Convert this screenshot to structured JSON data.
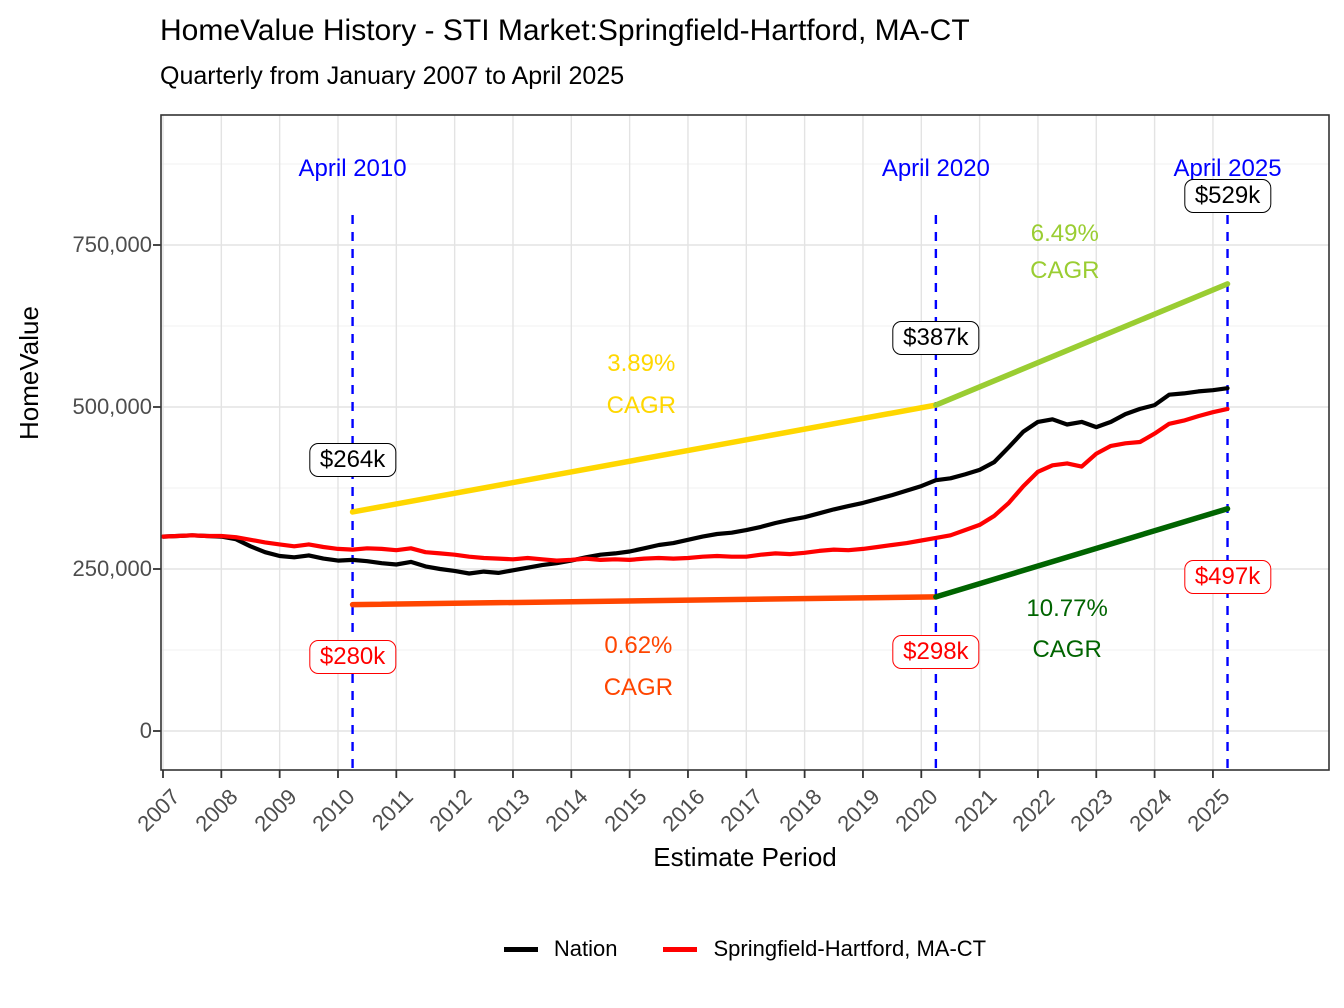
{
  "title": "HomeValue History - STI Market:Springfield-Hartford, MA-CT",
  "subtitle": "Quarterly from January 2007 to April 2025",
  "axes": {
    "y_label": "HomeValue",
    "x_label": "Estimate Period",
    "y_tick_labels": [
      "0",
      "250,000",
      "500,000",
      "750,000"
    ],
    "y_tick_values_thousands": [
      0,
      250,
      500,
      750
    ],
    "x_tick_labels": [
      "2007",
      "2008",
      "2009",
      "2010",
      "2011",
      "2012",
      "2013",
      "2014",
      "2015",
      "2016",
      "2017",
      "2018",
      "2019",
      "2020",
      "2021",
      "2022",
      "2023",
      "2024",
      "2025"
    ]
  },
  "legend": [
    {
      "label": "Nation",
      "color": "#000000"
    },
    {
      "label": "Springfield-Hartford, MA-CT",
      "color": "#ff0000"
    }
  ],
  "colors": {
    "blue_marker": "#0000ff",
    "gold_trend": "#ffd700",
    "yellowgreen_trend": "#9acd32",
    "orangered_trend": "#ff4500",
    "darkgreen_trend": "#006400",
    "grid_major": "#e3e3e3",
    "grid_minor": "#f1f1f1",
    "tick_text": "#4d4d4d",
    "panel_border": "#333333"
  },
  "chart_data": {
    "type": "line",
    "title": "HomeValue History - STI Market:Springfield-Hartford, MA-CT",
    "subtitle": "Quarterly from January 2007 to April 2025",
    "xlabel": "Estimate Period",
    "ylabel": "HomeValue",
    "x_unit": "decimal year, quarterly steps",
    "y_unit": "USD (values stored in thousands)",
    "x_range": [
      2007.0,
      2025.25
    ],
    "ylim_thousands": [
      0,
      900
    ],
    "grid": "major and minor horizontal, major vertical per year",
    "legend_position": "bottom",
    "series": [
      {
        "name": "Nation",
        "color": "#000000",
        "x_start": 2007.0,
        "x_step": 0.25,
        "values_thousands": [
          300,
          301,
          302,
          301,
          300,
          296,
          285,
          276,
          270,
          268,
          271,
          266,
          263,
          264,
          262,
          259,
          257,
          261,
          254,
          250,
          247,
          243,
          246,
          244,
          248,
          252,
          256,
          259,
          263,
          268,
          272,
          274,
          277,
          282,
          287,
          290,
          295,
          300,
          304,
          306,
          310,
          315,
          321,
          326,
          330,
          336,
          342,
          347,
          352,
          358,
          364,
          371,
          378,
          387,
          390,
          396,
          403,
          415,
          438,
          462,
          477,
          481,
          473,
          477,
          469,
          477,
          489,
          497,
          503,
          519,
          521,
          524,
          526,
          529
        ]
      },
      {
        "name": "Springfield-Hartford, MA-CT",
        "color": "#ff0000",
        "x_start": 2007.0,
        "x_step": 0.25,
        "values_thousands": [
          300,
          301,
          302,
          301,
          301,
          299,
          295,
          291,
          288,
          285,
          288,
          284,
          281,
          280,
          282,
          281,
          279,
          282,
          276,
          274,
          272,
          269,
          267,
          266,
          265,
          267,
          265,
          263,
          264,
          266,
          264,
          265,
          264,
          266,
          267,
          266,
          267,
          269,
          270,
          269,
          269,
          272,
          274,
          273,
          275,
          278,
          280,
          279,
          281,
          284,
          287,
          290,
          294,
          298,
          302,
          310,
          318,
          332,
          352,
          378,
          400,
          410,
          413,
          408,
          428,
          440,
          444,
          446,
          459,
          474,
          479,
          486,
          492,
          497
        ]
      }
    ],
    "trend_lines": [
      {
        "name": "nation-cagr-2010-2020",
        "label": "3.89% CAGR",
        "color": "#ffd700",
        "x": [
          2010.25,
          2020.25
        ],
        "values_thousands": [
          338,
          503
        ]
      },
      {
        "name": "nation-cagr-2020-2025",
        "label": "6.49% CAGR",
        "color": "#9acd32",
        "x": [
          2020.25,
          2025.25
        ],
        "values_thousands": [
          503,
          690
        ]
      },
      {
        "name": "market-cagr-2010-2020",
        "label": "0.62% CAGR",
        "color": "#ff4500",
        "x": [
          2010.25,
          2020.25
        ],
        "values_thousands": [
          195,
          207
        ]
      },
      {
        "name": "market-cagr-2020-2025",
        "label": "10.77% CAGR",
        "color": "#006400",
        "x": [
          2020.25,
          2025.25
        ],
        "values_thousands": [
          207,
          343
        ]
      }
    ],
    "vlines": [
      {
        "x": 2010.25,
        "label": "April 2010",
        "color": "#0000ff",
        "style": "dashed"
      },
      {
        "x": 2020.25,
        "label": "April 2020",
        "color": "#0000ff",
        "style": "dashed"
      },
      {
        "x": 2025.25,
        "label": "April 2025",
        "color": "#0000ff",
        "style": "dashed"
      }
    ],
    "value_callouts": [
      {
        "series": "Nation",
        "date": "April 2010",
        "text": "$264k"
      },
      {
        "series": "Nation",
        "date": "April 2020",
        "text": "$387k"
      },
      {
        "series": "Nation",
        "date": "April 2025",
        "text": "$529k"
      },
      {
        "series": "Springfield-Hartford, MA-CT",
        "date": "April 2010",
        "text": "$280k"
      },
      {
        "series": "Springfield-Hartford, MA-CT",
        "date": "April 2020",
        "text": "$298k"
      },
      {
        "series": "Springfield-Hartford, MA-CT",
        "date": "April 2025",
        "text": "$497k"
      }
    ]
  },
  "annotations": {
    "date_labels": [
      {
        "text": "April 2010",
        "x": 2010.25,
        "v": 866,
        "color": "#0000ff"
      },
      {
        "text": "April 2020",
        "x": 2020.25,
        "v": 866,
        "color": "#0000ff"
      },
      {
        "text": "April 2025",
        "x": 2025.25,
        "v": 866,
        "color": "#0000ff"
      }
    ],
    "cagr_labels": [
      {
        "text": "3.89%",
        "x": 2015.2,
        "v": 565,
        "color": "#ffd700"
      },
      {
        "text": "CAGR",
        "x": 2015.2,
        "v": 500,
        "color": "#ffd700"
      },
      {
        "text": "0.62%",
        "x": 2015.15,
        "v": 130,
        "color": "#ff4500"
      },
      {
        "text": "CAGR",
        "x": 2015.15,
        "v": 65,
        "color": "#ff4500"
      },
      {
        "text": "6.49%",
        "x": 2022.46,
        "v": 765,
        "color": "#9acd32"
      },
      {
        "text": "CAGR",
        "x": 2022.46,
        "v": 708,
        "color": "#9acd32"
      },
      {
        "text": "10.77%",
        "x": 2022.5,
        "v": 187,
        "color": "#006400"
      },
      {
        "text": "CAGR",
        "x": 2022.5,
        "v": 123,
        "color": "#006400"
      }
    ],
    "value_boxes": [
      {
        "text": "$264k",
        "x": 2010.25,
        "v": 418,
        "color": "#000000"
      },
      {
        "text": "$280k",
        "x": 2010.25,
        "v": 114,
        "color": "#ff0000"
      },
      {
        "text": "$387k",
        "x": 2020.25,
        "v": 606,
        "color": "#000000"
      },
      {
        "text": "$298k",
        "x": 2020.25,
        "v": 122,
        "color": "#ff0000"
      },
      {
        "text": "$529k",
        "x": 2025.25,
        "v": 826,
        "color": "#000000"
      },
      {
        "text": "$497k",
        "x": 2025.25,
        "v": 238,
        "color": "#ff0000"
      }
    ]
  }
}
